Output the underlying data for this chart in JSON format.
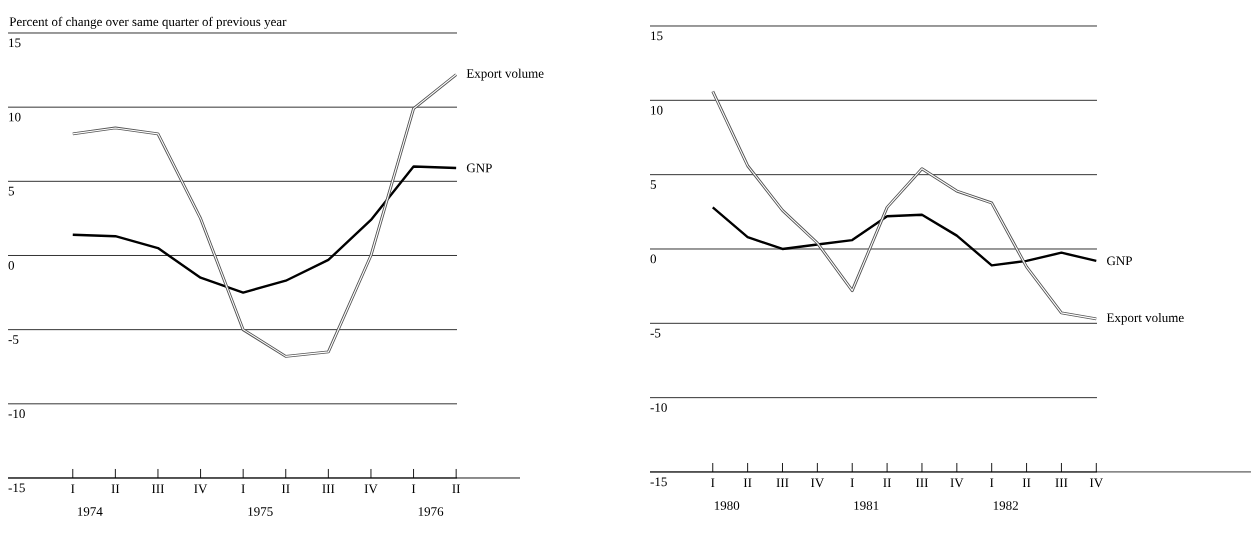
{
  "chart_data": [
    {
      "type": "line",
      "ylabel": "Percent of change over same quarter of previous year",
      "categories": [
        "I",
        "II",
        "III",
        "IV",
        "I",
        "II",
        "III",
        "IV",
        "I",
        "II"
      ],
      "series": [
        {
          "name": "GNP",
          "color": "#000000",
          "values": [
            1.4,
            1.3,
            0.5,
            -1.5,
            -2.5,
            -1.7,
            -0.3,
            2.4,
            6.0,
            5.9
          ]
        },
        {
          "name": "Export volume",
          "color": "#555555",
          "values": [
            8.2,
            8.6,
            8.2,
            2.5,
            -5.0,
            -6.8,
            -6.5,
            0,
            9.9,
            12.2
          ]
        }
      ],
      "ylim": [
        -15,
        15
      ],
      "yticks": [
        -15,
        -10,
        -5,
        0,
        5,
        10,
        15
      ],
      "annotations": [
        "1974",
        "1975",
        "1976"
      ],
      "grid": "y",
      "line_style": "solid"
    },
    {
      "type": "line",
      "categories": [
        "I",
        "II",
        "III",
        "IV",
        "I",
        "II",
        "III",
        "IV",
        "I",
        "II",
        "III",
        "IV"
      ],
      "series": [
        {
          "name": "GNP",
          "color": "#000000",
          "values": [
            2.8,
            0.8,
            0,
            0.3,
            0.6,
            2.2,
            2.3,
            0.9,
            -1.1,
            -0.8,
            -0.25,
            -0.8
          ]
        },
        {
          "name": "Export volume",
          "color": "#555555",
          "values": [
            10.6,
            5.6,
            2.6,
            0.4,
            -2.8,
            2.8,
            5.4,
            3.9,
            3.1,
            -1.2,
            -4.3,
            -4.7
          ]
        }
      ],
      "ylim": [
        -15,
        15
      ],
      "yticks": [
        -15,
        -10,
        -5,
        0,
        5,
        10,
        15
      ],
      "annotations": [
        "1980",
        "1981",
        "1982"
      ],
      "grid": "y",
      "line_style": "solid"
    }
  ]
}
